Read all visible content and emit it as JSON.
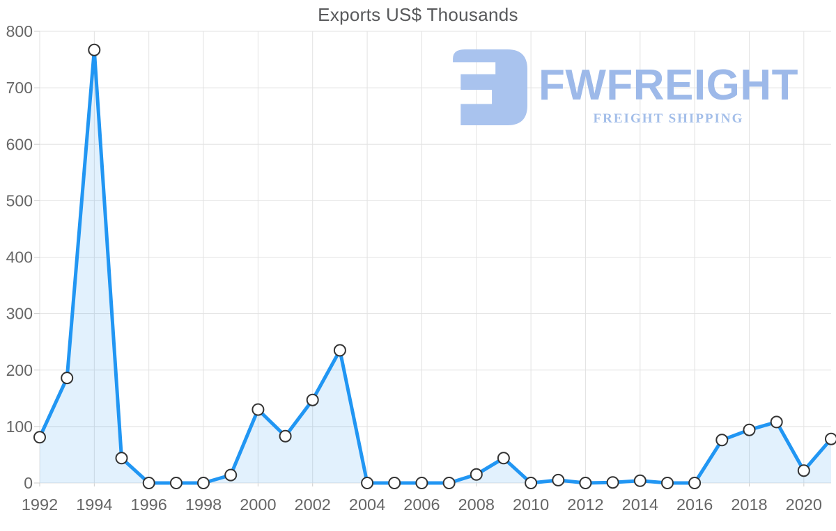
{
  "title": "Exports US$ Thousands",
  "logo": {
    "wordmark": "FWFREIGHT",
    "tagline": "FREIGHT SHIPPING",
    "icon_color": "#a9c3ee",
    "wordmark_color": "#9db9e9",
    "tagline_color": "#a3bee9"
  },
  "chart_data": {
    "type": "area",
    "title": "Exports US$ Thousands",
    "x": [
      1992,
      1993,
      1994,
      1995,
      1996,
      1997,
      1998,
      1999,
      2000,
      2001,
      2002,
      2003,
      2004,
      2005,
      2006,
      2007,
      2008,
      2009,
      2010,
      2011,
      2012,
      2013,
      2014,
      2015,
      2016,
      2017,
      2018,
      2019,
      2020,
      2021
    ],
    "series": [
      {
        "name": "Exports US$ Thousands",
        "values": [
          81,
          186,
          767,
          44,
          0,
          0,
          0,
          14,
          130,
          83,
          147,
          235,
          0,
          0,
          0,
          0,
          15,
          44,
          0,
          5,
          0,
          1,
          4,
          0,
          0,
          76,
          94,
          108,
          22,
          78
        ]
      }
    ],
    "xlabel": "",
    "ylabel": "",
    "ylim": [
      0,
      800
    ],
    "y_tick_interval": 100,
    "y_tick_labels": [
      "0",
      "100",
      "200",
      "300",
      "400",
      "500",
      "600",
      "700",
      "800"
    ],
    "x_tick_step": 2,
    "x_tick_labels": [
      "1992",
      "1994",
      "1996",
      "1998",
      "2000",
      "2002",
      "2004",
      "2006",
      "2008",
      "2010",
      "2012",
      "2014",
      "2016",
      "2018",
      "2020"
    ],
    "grid": true,
    "legend": "none",
    "line_color": "#2196f3",
    "fill_color": "rgba(33,150,243,0.13)",
    "grid_color": "#e2e2e2",
    "tick_color": "#cccccc",
    "label_color": "#666666",
    "marker_fill": "#ffffff",
    "marker_stroke": "#333333"
  }
}
